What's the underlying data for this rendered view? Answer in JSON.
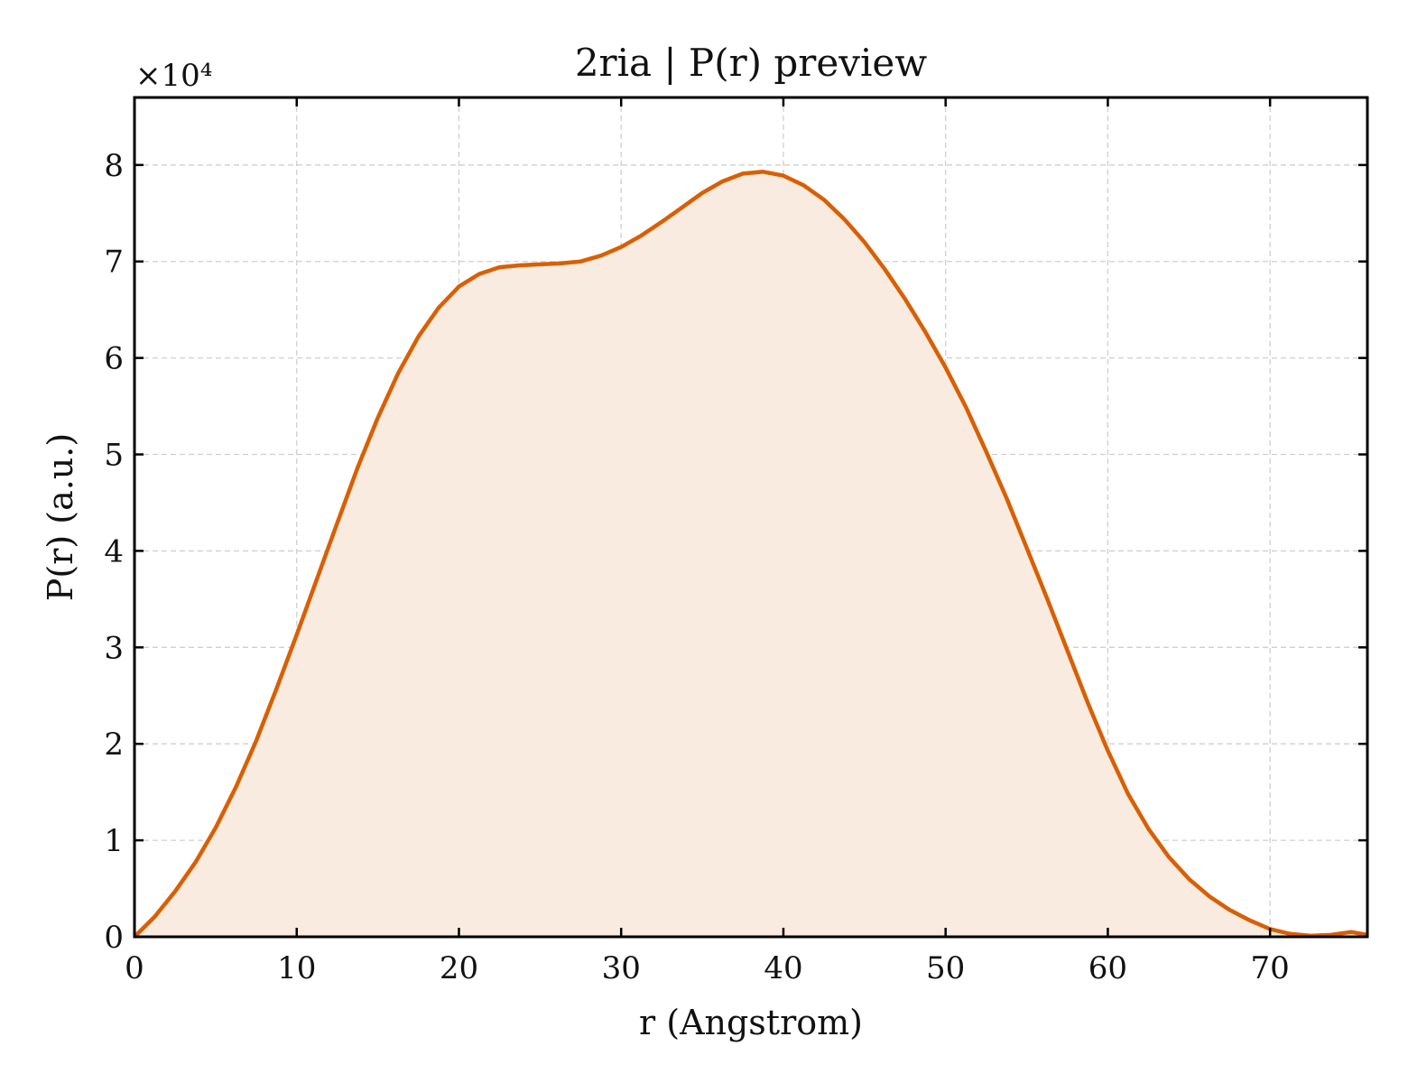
{
  "chart_data": {
    "type": "area",
    "title": "2ria | P(r) preview",
    "xlabel": "r (Angstrom)",
    "ylabel": "P(r) (a.u.)",
    "y_multiplier_label": "×10⁴",
    "y_scale": 10000,
    "xlim": [
      0,
      76
    ],
    "ylim": [
      0,
      8.7
    ],
    "xticks": [
      0,
      10,
      20,
      30,
      40,
      50,
      60,
      70
    ],
    "yticks": [
      0,
      1,
      2,
      3,
      4,
      5,
      6,
      7,
      8
    ],
    "grid": true,
    "tick_direction": "in",
    "line_color": "#d95f02",
    "fill_color": "#f9ebe0",
    "series": [
      {
        "x": [
          0,
          1.25,
          2.5,
          3.75,
          5,
          6.25,
          7.5,
          8.75,
          10,
          11.25,
          12.5,
          13.75,
          15,
          16.25,
          17.5,
          18.75,
          20,
          21.25,
          22.5,
          23.75,
          25,
          26.25,
          27.5,
          28.75,
          30,
          31.25,
          32.5,
          33.75,
          35,
          36.25,
          37.5,
          38.75,
          40,
          41.25,
          42.5,
          43.75,
          45,
          46.25,
          47.5,
          48.75,
          50,
          51.25,
          52.5,
          53.75,
          55,
          56.25,
          57.5,
          58.75,
          60,
          61.25,
          62.5,
          63.75,
          65,
          66.25,
          67.5,
          68.75,
          70,
          71.25,
          72.5,
          73.75,
          75,
          76
        ],
        "y": [
          0.0,
          0.21,
          0.47,
          0.77,
          1.13,
          1.55,
          2.03,
          2.57,
          3.13,
          3.71,
          4.29,
          4.86,
          5.38,
          5.84,
          6.22,
          6.52,
          6.74,
          6.87,
          6.94,
          6.96,
          6.97,
          6.98,
          7.0,
          7.06,
          7.15,
          7.27,
          7.41,
          7.56,
          7.71,
          7.83,
          7.91,
          7.93,
          7.89,
          7.79,
          7.64,
          7.44,
          7.2,
          6.92,
          6.61,
          6.27,
          5.9,
          5.49,
          5.03,
          4.55,
          4.03,
          3.51,
          2.97,
          2.43,
          1.93,
          1.48,
          1.12,
          0.83,
          0.6,
          0.42,
          0.28,
          0.17,
          0.08,
          0.03,
          0.01,
          0.02,
          0.05,
          0.02
        ]
      }
    ]
  }
}
